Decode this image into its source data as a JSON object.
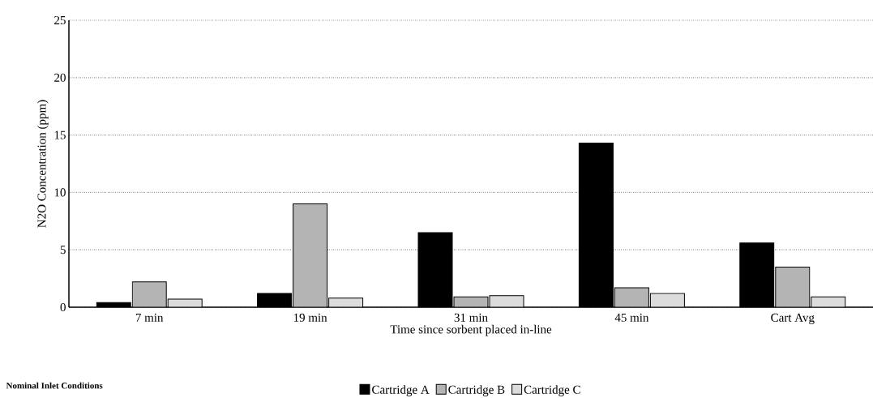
{
  "chart_data": {
    "type": "bar",
    "xlabel": "Time since sorbent placed in-line",
    "ylabel": "N2O Concentration (ppm)",
    "categories": [
      "7 min",
      "19 min",
      "31 min",
      "45 min",
      "Cart Avg"
    ],
    "series": [
      {
        "name": "Cartridge A",
        "color": "#000000",
        "values": [
          0.4,
          1.2,
          6.5,
          14.3,
          5.6
        ]
      },
      {
        "name": "Cartridge B",
        "color": "#b4b4b4",
        "values": [
          2.2,
          9.0,
          0.9,
          1.7,
          3.5
        ]
      },
      {
        "name": "Cartridge C",
        "color": "#dcdcdc",
        "values": [
          0.7,
          0.8,
          1.0,
          1.2,
          0.9
        ]
      }
    ],
    "ylim": [
      0,
      25
    ],
    "yticks": [
      0,
      5,
      10,
      15,
      20,
      25
    ],
    "grid": "y",
    "legend": "bottom",
    "annotations": [
      "Nominal Inlet Conditions"
    ]
  }
}
